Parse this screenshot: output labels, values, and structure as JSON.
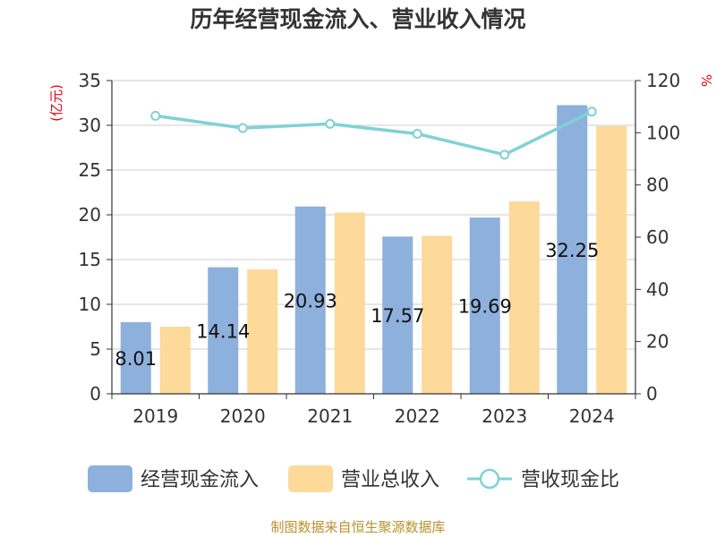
{
  "chart_data": {
    "type": "bar",
    "title": "历年经营现金流入、营业收入情况",
    "categories": [
      "2019",
      "2020",
      "2021",
      "2022",
      "2023",
      "2024"
    ],
    "series": [
      {
        "name": "经营现金流入",
        "kind": "bar",
        "axis": "left",
        "color": "#8eb0dc",
        "values": [
          8.01,
          14.14,
          20.93,
          17.57,
          19.69,
          32.25
        ],
        "labels": [
          "8.01",
          "14.14",
          "20.93",
          "17.57",
          "19.69",
          "32.25"
        ]
      },
      {
        "name": "营业总收入",
        "kind": "bar",
        "axis": "left",
        "color": "#fdd99a",
        "values": [
          7.5,
          13.9,
          20.25,
          17.65,
          21.5,
          29.9
        ]
      },
      {
        "name": "营收现金比",
        "kind": "line",
        "axis": "right",
        "color": "#80d2d4",
        "values": [
          106.5,
          101.8,
          103.4,
          99.6,
          91.6,
          108.1
        ]
      }
    ],
    "y_left": {
      "unit": "(亿元)",
      "min": 0,
      "max": 35,
      "ticks": [
        0,
        5,
        10,
        15,
        20,
        25,
        30,
        35
      ]
    },
    "y_right": {
      "unit": "%",
      "min": 0,
      "max": 120,
      "ticks": [
        0,
        20,
        40,
        60,
        80,
        100,
        120
      ]
    },
    "grid": true,
    "legend_position": "bottom"
  },
  "source": "制图数据来自恒生聚源数据库"
}
